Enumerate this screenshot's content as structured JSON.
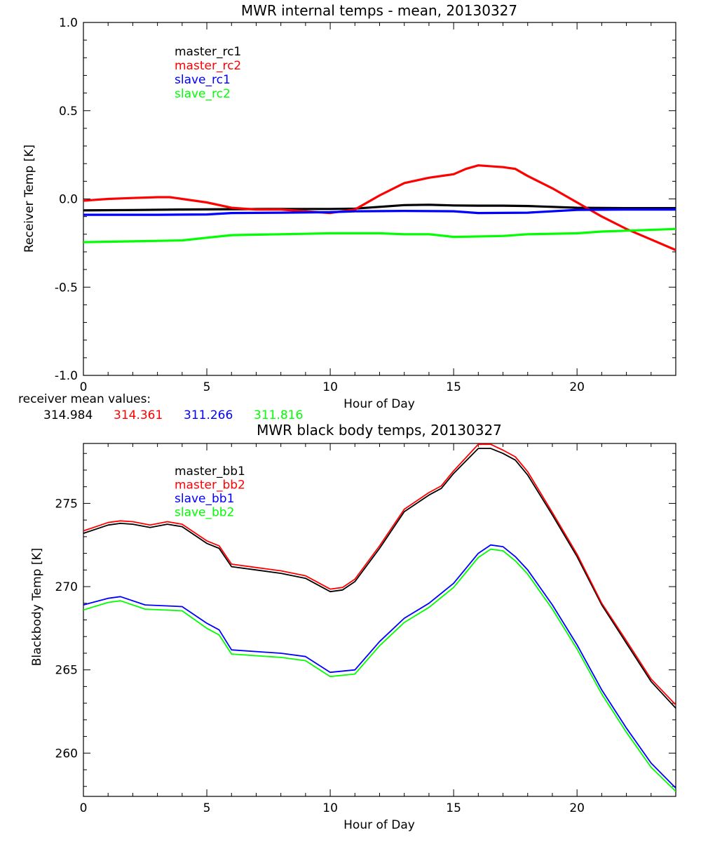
{
  "chart_data": [
    {
      "type": "line",
      "title": "MWR internal temps - mean, 20130327",
      "xlabel": "Hour of Day",
      "ylabel": "Receiver Temp [K]",
      "xlim": [
        0,
        24
      ],
      "ylim": [
        -1.0,
        1.0
      ],
      "xticks": [
        "0",
        "5",
        "10",
        "15",
        "20"
      ],
      "yticks": [
        "-1.0",
        "-0.5",
        "0.0",
        "0.5",
        "1.0"
      ],
      "legend_placement": "top-left",
      "series": [
        {
          "name": "master_rc1",
          "color": "#000000",
          "x": [
            0,
            2,
            4,
            6,
            8,
            10,
            11,
            12,
            13,
            14,
            15,
            16,
            17,
            18,
            19,
            20,
            22,
            24
          ],
          "y": [
            -0.065,
            -0.063,
            -0.06,
            -0.058,
            -0.057,
            -0.057,
            -0.055,
            -0.045,
            -0.035,
            -0.033,
            -0.037,
            -0.038,
            -0.038,
            -0.04,
            -0.045,
            -0.05,
            -0.052,
            -0.052
          ]
        },
        {
          "name": "master_rc2",
          "color": "#ff0000",
          "x": [
            0,
            1,
            2,
            3,
            3.5,
            4,
            5,
            6,
            7,
            8,
            9,
            10,
            11,
            12,
            13,
            14,
            15,
            15.5,
            16,
            17,
            17.5,
            18,
            19,
            20,
            21,
            22,
            23,
            24
          ],
          "y": [
            -0.01,
            0.0,
            0.005,
            0.01,
            0.01,
            0.0,
            -0.02,
            -0.05,
            -0.06,
            -0.06,
            -0.07,
            -0.08,
            -0.06,
            0.02,
            0.09,
            0.12,
            0.14,
            0.17,
            0.19,
            0.18,
            0.17,
            0.13,
            0.06,
            -0.02,
            -0.1,
            -0.17,
            -0.23,
            -0.29
          ]
        },
        {
          "name": "slave_rc1",
          "color": "#0000ff",
          "x": [
            0,
            3,
            5,
            6,
            8,
            10,
            11,
            13,
            15,
            16,
            18,
            20,
            22,
            24
          ],
          "y": [
            -0.09,
            -0.09,
            -0.088,
            -0.08,
            -0.078,
            -0.075,
            -0.07,
            -0.068,
            -0.07,
            -0.08,
            -0.078,
            -0.062,
            -0.06,
            -0.06
          ]
        },
        {
          "name": "slave_rc2",
          "color": "#00ff00",
          "x": [
            0,
            2,
            4,
            5,
            6,
            8,
            10,
            12,
            13,
            14,
            15,
            17,
            18,
            20,
            21,
            22,
            24
          ],
          "y": [
            -0.245,
            -0.24,
            -0.235,
            -0.22,
            -0.205,
            -0.2,
            -0.195,
            -0.195,
            -0.2,
            -0.2,
            -0.215,
            -0.21,
            -0.2,
            -0.195,
            -0.185,
            -0.18,
            -0.17
          ]
        }
      ],
      "annotation": {
        "label": "receiver mean values:",
        "values": [
          {
            "text": "314.984",
            "color": "#000000"
          },
          {
            "text": "314.361",
            "color": "#ff0000"
          },
          {
            "text": "311.266",
            "color": "#0000ff"
          },
          {
            "text": "311.816",
            "color": "#00ff00"
          }
        ]
      }
    },
    {
      "type": "line",
      "title": "MWR black body temps, 20130327",
      "xlabel": "Hour of Day",
      "ylabel": "Blackbody Temp [K]",
      "xlim": [
        0,
        24
      ],
      "ylim": [
        257.4,
        278.6
      ],
      "xticks": [
        "0",
        "5",
        "10",
        "15",
        "20"
      ],
      "yticks": [
        "260",
        "265",
        "270",
        "275"
      ],
      "legend_placement": "top-left",
      "series": [
        {
          "name": "master_bb1",
          "color": "#000000",
          "x": [
            0,
            1,
            1.5,
            2,
            2.7,
            3.4,
            4,
            5,
            5.5,
            6,
            7,
            8,
            9,
            10,
            10.5,
            11,
            12,
            13,
            14,
            14.5,
            15,
            16,
            16.5,
            17,
            17.5,
            18,
            19,
            20,
            21,
            22,
            23,
            24
          ],
          "y": [
            273.2,
            273.7,
            273.8,
            273.75,
            273.55,
            273.75,
            273.6,
            272.6,
            272.3,
            271.2,
            271.0,
            270.8,
            270.5,
            269.7,
            269.8,
            270.3,
            272.3,
            274.5,
            275.5,
            275.9,
            276.8,
            278.3,
            278.3,
            278.0,
            277.6,
            276.7,
            274.3,
            271.8,
            268.9,
            266.6,
            264.3,
            262.7
          ]
        },
        {
          "name": "master_bb2",
          "color": "#ff0000",
          "x": [
            0,
            1,
            1.5,
            2,
            2.7,
            3.4,
            4,
            5,
            5.5,
            6,
            7,
            8,
            9,
            10,
            10.5,
            11,
            12,
            13,
            14,
            14.5,
            15,
            16,
            16.5,
            17,
            17.5,
            18,
            19,
            20,
            21,
            22,
            23,
            24
          ],
          "y": [
            273.35,
            273.85,
            273.95,
            273.9,
            273.7,
            273.9,
            273.75,
            272.75,
            272.45,
            271.35,
            271.15,
            270.95,
            270.65,
            269.85,
            269.95,
            270.45,
            272.45,
            274.65,
            275.65,
            276.05,
            276.95,
            278.55,
            278.55,
            278.2,
            277.8,
            276.9,
            274.45,
            271.95,
            269.0,
            266.75,
            264.45,
            262.9
          ]
        },
        {
          "name": "slave_bb1",
          "color": "#0000ff",
          "x": [
            0,
            1,
            1.5,
            2.5,
            4,
            5,
            5.5,
            6,
            8,
            9,
            10,
            11,
            12,
            13,
            14,
            15,
            16,
            16.5,
            17,
            17.5,
            18,
            19,
            20,
            21,
            22,
            23,
            24
          ],
          "y": [
            268.9,
            269.3,
            269.4,
            268.9,
            268.8,
            267.8,
            267.4,
            266.2,
            266.0,
            265.8,
            264.85,
            265.0,
            266.7,
            268.1,
            269.0,
            270.2,
            272.0,
            272.5,
            272.4,
            271.8,
            271.0,
            268.9,
            266.5,
            263.8,
            261.5,
            259.4,
            257.9
          ]
        },
        {
          "name": "slave_bb2",
          "color": "#00ff00",
          "x": [
            0,
            1,
            1.5,
            2.5,
            4,
            5,
            5.5,
            6,
            8,
            9,
            10,
            11,
            12,
            13,
            14,
            15,
            16,
            16.5,
            17,
            17.5,
            18,
            19,
            20,
            21,
            22,
            23,
            24
          ],
          "y": [
            268.6,
            269.05,
            269.15,
            268.65,
            268.55,
            267.5,
            267.1,
            265.95,
            265.75,
            265.55,
            264.6,
            264.75,
            266.45,
            267.85,
            268.75,
            269.95,
            271.75,
            272.25,
            272.15,
            271.55,
            270.75,
            268.65,
            266.25,
            263.55,
            261.25,
            259.15,
            257.7
          ]
        }
      ]
    }
  ]
}
